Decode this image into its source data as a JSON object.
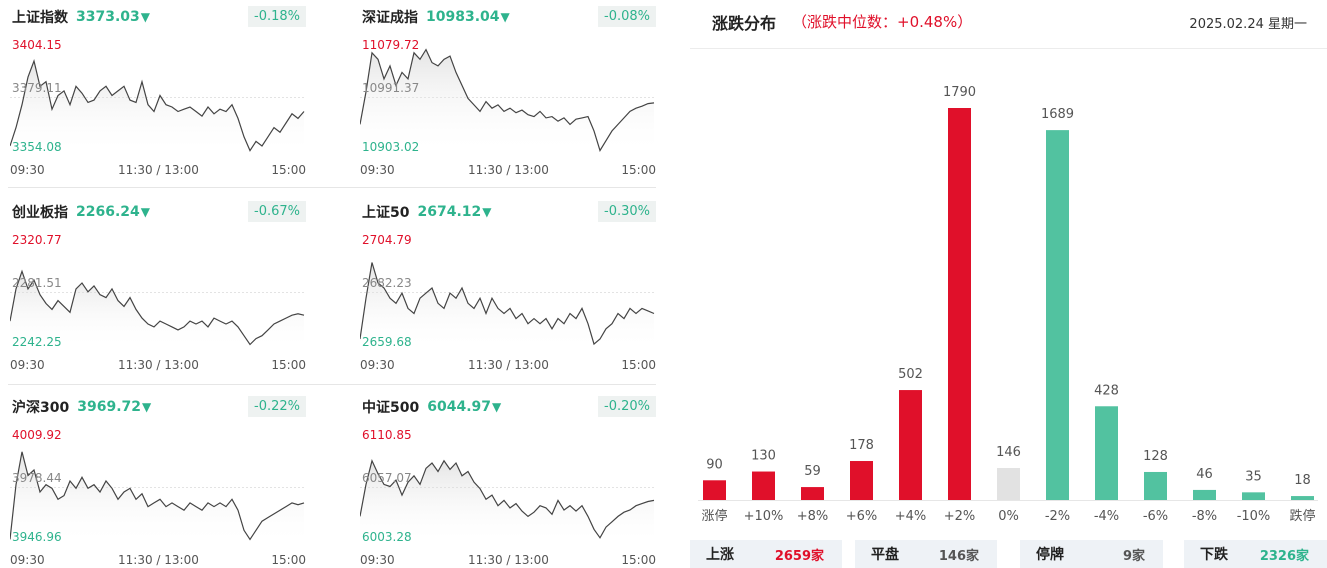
{
  "indices": [
    {
      "name": "上证指数",
      "price": "3373.03",
      "arrow": "▼",
      "pct": "-0.18%",
      "hi": "3404.15",
      "mid": "3379.11",
      "lo": "3354.08",
      "t": [
        "09:30",
        "11:30 / 13:00",
        "15:00"
      ],
      "series": [
        3358,
        3366,
        3376,
        3388,
        3395,
        3384,
        3386,
        3374,
        3380,
        3382,
        3376,
        3384,
        3381,
        3377,
        3378,
        3382,
        3384,
        3380,
        3382,
        3384,
        3378,
        3377,
        3386,
        3376,
        3373,
        3380,
        3376,
        3375,
        3373,
        3374,
        3375,
        3373,
        3371,
        3375,
        3372,
        3374,
        3373,
        3376,
        3370,
        3362,
        3356,
        3360,
        3358,
        3362,
        3366,
        3364,
        3368,
        3372,
        3370,
        3373
      ]
    },
    {
      "name": "深证成指",
      "price": "10983.04",
      "arrow": "▼",
      "pct": "-0.08%",
      "hi": "11079.72",
      "mid": "10991.37",
      "lo": "10903.02",
      "t": [
        "09:30",
        "11:30 / 13:00",
        "15:00"
      ],
      "series": [
        10950,
        11000,
        11060,
        11050,
        11020,
        11040,
        11010,
        11030,
        11020,
        11060,
        11050,
        11065,
        11045,
        11040,
        11050,
        11055,
        11030,
        11010,
        10990,
        10980,
        10970,
        10985,
        10975,
        10980,
        10970,
        10975,
        10968,
        10972,
        10965,
        10962,
        10970,
        10960,
        10962,
        10955,
        10960,
        10950,
        10958,
        10960,
        10962,
        10940,
        10910,
        10925,
        10940,
        10950,
        10960,
        10970,
        10975,
        10978,
        10982,
        10983
      ]
    },
    {
      "name": "创业板指",
      "price": "2266.24",
      "arrow": "▼",
      "pct": "-0.67%",
      "hi": "2320.77",
      "mid": "2281.51",
      "lo": "2242.25",
      "t": [
        "09:30",
        "11:30 / 13:00",
        "15:00"
      ],
      "series": [
        2262,
        2284,
        2296,
        2284,
        2290,
        2280,
        2274,
        2270,
        2276,
        2272,
        2268,
        2284,
        2288,
        2282,
        2286,
        2280,
        2278,
        2284,
        2276,
        2272,
        2278,
        2270,
        2264,
        2260,
        2258,
        2262,
        2260,
        2258,
        2256,
        2258,
        2262,
        2260,
        2262,
        2258,
        2264,
        2262,
        2260,
        2262,
        2258,
        2252,
        2246,
        2250,
        2252,
        2256,
        2260,
        2262,
        2264,
        2266,
        2267,
        2266
      ]
    },
    {
      "name": "上证50",
      "price": "2674.12",
      "arrow": "▼",
      "pct": "-0.30%",
      "hi": "2704.79",
      "mid": "2682.23",
      "lo": "2659.68",
      "t": [
        "09:30",
        "11:30 / 13:00",
        "15:00"
      ],
      "series": [
        2664,
        2680,
        2694,
        2686,
        2684,
        2680,
        2678,
        2682,
        2676,
        2674,
        2680,
        2682,
        2684,
        2678,
        2676,
        2682,
        2680,
        2684,
        2678,
        2676,
        2680,
        2674,
        2680,
        2676,
        2674,
        2676,
        2672,
        2674,
        2670,
        2672,
        2670,
        2672,
        2668,
        2672,
        2670,
        2674,
        2672,
        2676,
        2670,
        2662,
        2664,
        2668,
        2670,
        2674,
        2672,
        2676,
        2674,
        2676,
        2675,
        2674
      ]
    },
    {
      "name": "沪深300",
      "price": "3969.72",
      "arrow": "▼",
      "pct": "-0.22%",
      "hi": "4009.92",
      "mid": "3978.44",
      "lo": "3946.96",
      "t": [
        "09:30",
        "11:30 / 13:00",
        "15:00"
      ],
      "series": [
        3950,
        3980,
        3998,
        3985,
        3988,
        3976,
        3980,
        3978,
        3972,
        3974,
        3982,
        3978,
        3984,
        3978,
        3980,
        3976,
        3982,
        3978,
        3972,
        3976,
        3978,
        3972,
        3975,
        3968,
        3970,
        3972,
        3968,
        3970,
        3968,
        3966,
        3970,
        3968,
        3966,
        3970,
        3968,
        3970,
        3968,
        3972,
        3966,
        3955,
        3950,
        3955,
        3960,
        3962,
        3964,
        3966,
        3968,
        3970,
        3969,
        3970
      ]
    },
    {
      "name": "中证500",
      "price": "6044.97",
      "arrow": "▼",
      "pct": "-0.20%",
      "hi": "6110.85",
      "mid": "6057.07",
      "lo": "6003.28",
      "t": [
        "09:30",
        "11:30 / 13:00",
        "15:00"
      ],
      "series": [
        6030,
        6060,
        6082,
        6070,
        6060,
        6058,
        6064,
        6050,
        6062,
        6068,
        6060,
        6075,
        6080,
        6072,
        6082,
        6074,
        6080,
        6068,
        6072,
        6062,
        6056,
        6046,
        6050,
        6040,
        6045,
        6038,
        6042,
        6035,
        6030,
        6034,
        6040,
        6038,
        6032,
        6045,
        6036,
        6040,
        6035,
        6040,
        6030,
        6018,
        6010,
        6020,
        6025,
        6030,
        6034,
        6036,
        6040,
        6042,
        6044,
        6045
      ]
    }
  ],
  "distribution": {
    "title": "涨跌分布",
    "median": "（涨跌中位数：+0.48%）",
    "date": "2025.02.24 星期一",
    "colors": {
      "up": "#e0102a",
      "flat": "#e2e2e2",
      "down": "#52c2a0"
    },
    "chart_data": {
      "type": "bar",
      "categories": [
        "涨停",
        "+10%",
        "+8%",
        "+6%",
        "+4%",
        "+2%",
        "0%",
        "-2%",
        "-4%",
        "-6%",
        "-8%",
        "-10%",
        "跌停"
      ],
      "values": [
        90,
        130,
        59,
        178,
        502,
        1790,
        146,
        1689,
        428,
        128,
        46,
        35,
        18
      ],
      "kinds": [
        "up",
        "up",
        "up",
        "up",
        "up",
        "up",
        "flat",
        "down",
        "down",
        "down",
        "down",
        "down",
        "down"
      ],
      "ylim": [
        0,
        1790
      ]
    },
    "summary": [
      {
        "label": "上涨",
        "value": "2659家",
        "color": "#e0102a"
      },
      {
        "label": "平盘",
        "value": "146家",
        "color": "#555555"
      },
      {
        "label": "停牌",
        "value": "9家",
        "color": "#555555"
      },
      {
        "label": "下跌",
        "value": "2326家",
        "color": "#2eb38d"
      }
    ]
  }
}
